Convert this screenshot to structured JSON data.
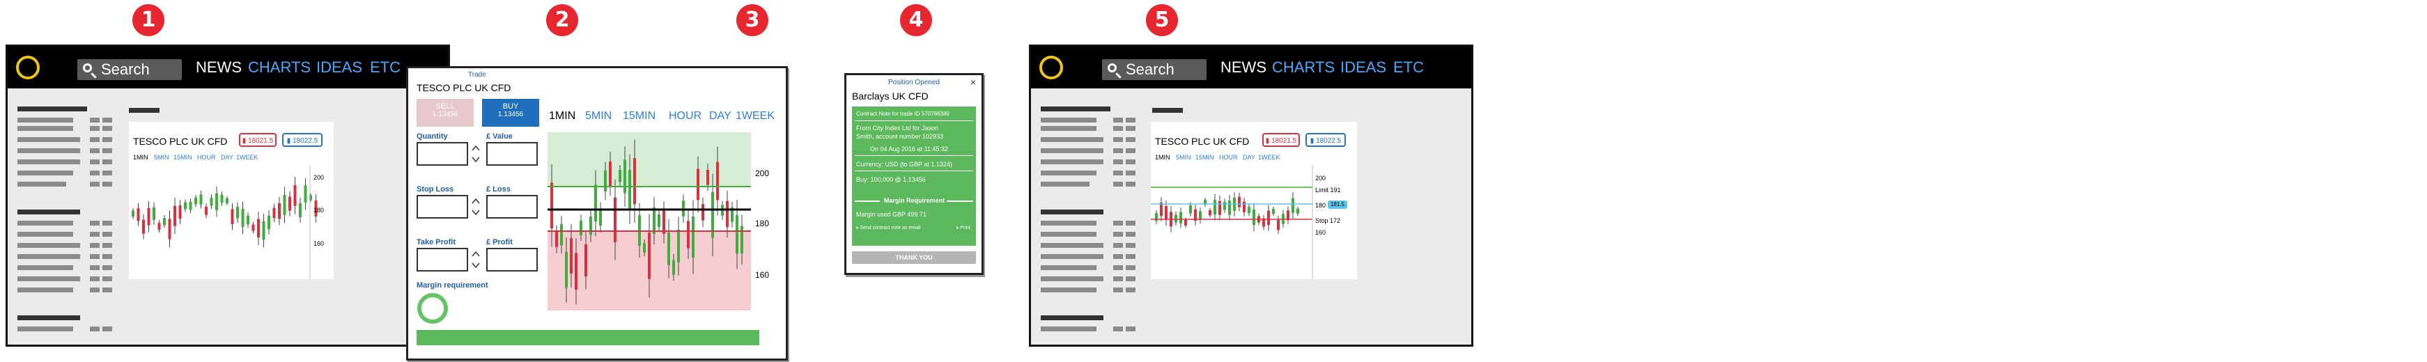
{
  "steps": [
    "1",
    "2",
    "3",
    "4",
    "5"
  ],
  "nav": {
    "search_placeholder": "Search",
    "links": [
      "NEWS",
      "CHARTS",
      "IDEAS",
      "ETC"
    ]
  },
  "chart_card": {
    "title": "TESCO PLC UK CFD",
    "sell_badge": "▮ 18021.5",
    "buy_badge": "▮ 18022.5",
    "timeframes": [
      "1MIN",
      "5MIN",
      "15MIN",
      "HOUR",
      "DAY",
      "1WEEK"
    ],
    "axis": [
      "200",
      "180",
      "160"
    ]
  },
  "ticket": {
    "header": "Trade",
    "title": "TESCO PLC UK CFD",
    "sell_label": "SELL",
    "sell_price": "1.13456",
    "buy_label": "BUY",
    "buy_price": "1.13456",
    "quantity_label": "Quantity",
    "value_label": "£ Value",
    "stop_loss_label": "Stop Loss",
    "loss_label": "£ Loss",
    "take_profit_label": "Take Profit",
    "profit_label": "£ Profit",
    "margin_label": "Margin requirement",
    "timeframes": [
      "1MIN",
      "5MIN",
      "15MIN",
      "HOUR",
      "DAY",
      "1WEEK"
    ],
    "axis": [
      "200",
      "180",
      "160"
    ]
  },
  "position": {
    "header": "Position Opened",
    "close": "×",
    "title": "Barclays UK CFD",
    "contract_note": "Contract Note for trade ID 570786386",
    "from_line1": "From City Index Ltd for Jason",
    "from_line2": "Smith, account number 102933",
    "date_line": "On 04 Aug 2016 at 11:45:32",
    "currency_line": "Currency: USD (to GBP at 1.1324)",
    "buy_line": "Buy: 100,000 @ 1.13456",
    "margin_heading": "Margin Requirement",
    "margin_used": "Margin used GBP 499.71",
    "send_email": "▸ Send contract note as email",
    "print": "▸ Print",
    "thanks_button": "THANK YOU"
  },
  "screen5": {
    "limit_label": "Limit 191",
    "price_tag": "181.5",
    "stop_label": "Stop 172",
    "mid_axis": "180"
  },
  "colors": {
    "step_badge": "#e8262f",
    "accent_blue": "#2e7fd8",
    "candle_up": "#3fae3f",
    "candle_down": "#d9303e",
    "confirm_green": "#5cb85c"
  }
}
